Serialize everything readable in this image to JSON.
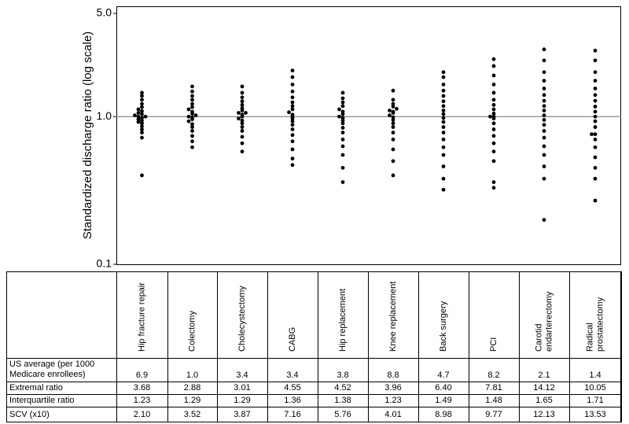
{
  "chart_data": {
    "type": "dot",
    "y_label": "Standardized discharge ratio (log scale)",
    "log_scale": true,
    "color": "#000000",
    "reference_line": 1,
    "ylim": [
      0.1,
      5
    ],
    "yticks": [
      {
        "value": 0.1,
        "label": "0.1"
      },
      {
        "value": 1,
        "label": "1.0"
      },
      {
        "value": 5,
        "label": "5.0"
      }
    ],
    "categories": [
      "Hip fracture repair",
      "Colectomy",
      "Cholecystectomy",
      "CABG",
      "Hip replacement",
      "Knee replacement",
      "Back surgery",
      "PCI",
      "Carotid endarterectomy",
      "Radical prostatectomy"
    ],
    "values": [
      [
        0.4,
        0.72,
        0.78,
        0.82,
        0.86,
        0.9,
        0.92,
        0.94,
        0.96,
        0.98,
        1.0,
        1.0,
        1.02,
        1.04,
        1.06,
        1.09,
        1.12,
        1.16,
        1.22,
        1.3,
        1.38,
        1.45
      ],
      [
        0.62,
        0.68,
        0.74,
        0.8,
        0.85,
        0.89,
        0.93,
        0.96,
        0.99,
        1.0,
        1.02,
        1.05,
        1.08,
        1.12,
        1.16,
        1.22,
        1.3,
        1.38,
        1.48,
        1.6
      ],
      [
        0.58,
        0.66,
        0.73,
        0.8,
        0.85,
        0.9,
        0.94,
        0.97,
        1.0,
        1.03,
        1.06,
        1.06,
        1.1,
        1.14,
        1.2,
        1.27,
        1.35,
        1.45,
        1.6
      ],
      [
        0.47,
        0.52,
        0.6,
        0.68,
        0.75,
        0.82,
        0.88,
        0.93,
        0.97,
        1.0,
        1.03,
        1.07,
        1.12,
        1.18,
        1.25,
        1.35,
        1.48,
        1.65,
        1.85,
        2.05
      ],
      [
        0.36,
        0.45,
        0.55,
        0.63,
        0.7,
        0.78,
        0.84,
        0.9,
        0.94,
        0.98,
        1.0,
        1.04,
        1.08,
        1.12,
        1.18,
        1.25,
        1.33,
        1.45
      ],
      [
        0.4,
        0.5,
        0.6,
        0.7,
        0.78,
        0.85,
        0.9,
        0.95,
        0.99,
        1.02,
        1.06,
        1.08,
        1.1,
        1.13,
        1.17,
        1.22,
        1.3,
        1.5
      ],
      [
        0.32,
        0.38,
        0.46,
        0.55,
        0.62,
        0.7,
        0.78,
        0.85,
        0.92,
        0.98,
        1.04,
        1.1,
        1.18,
        1.27,
        1.38,
        1.5,
        1.65,
        1.85,
        2.0
      ],
      [
        0.33,
        0.36,
        0.5,
        0.58,
        0.66,
        0.74,
        0.82,
        0.9,
        0.97,
        1.0,
        1.0,
        1.05,
        1.12,
        1.2,
        1.3,
        1.45,
        1.65,
        1.9,
        2.2,
        2.45
      ],
      [
        0.2,
        0.38,
        0.46,
        0.55,
        0.63,
        0.72,
        0.8,
        0.88,
        0.95,
        1.02,
        1.1,
        1.18,
        1.28,
        1.4,
        1.55,
        1.75,
        2.0,
        2.4,
        2.85
      ],
      [
        0.27,
        0.38,
        0.45,
        0.53,
        0.62,
        0.7,
        0.76,
        0.76,
        0.85,
        0.93,
        1.0,
        1.08,
        1.17,
        1.28,
        1.4,
        1.55,
        1.75,
        2.0,
        2.4,
        2.8
      ]
    ]
  },
  "table": {
    "columns": [
      [
        "Hip fracture repair"
      ],
      [
        "Colectomy"
      ],
      [
        "Cholecystectomy"
      ],
      [
        "CABG"
      ],
      [
        "Hip replacement"
      ],
      [
        "Knee replacement"
      ],
      [
        "Back surgery"
      ],
      [
        "PCI"
      ],
      [
        "Carotid",
        "endarterectomy"
      ],
      [
        "Radical",
        "prostatectomy"
      ]
    ],
    "rows": [
      {
        "label": [
          "US average (per 1000",
          "Medicare enrollees)"
        ],
        "cells": [
          "6.9",
          "1.0",
          "3.4",
          "3.4",
          "3.8",
          "8.8",
          "4.7",
          "8.2",
          "2.1",
          "1.4"
        ]
      },
      {
        "label": [
          "Extremal ratio"
        ],
        "cells": [
          "3.68",
          "2.88",
          "3.01",
          "4.55",
          "4.52",
          "3.96",
          "6.40",
          "7.81",
          "14.12",
          "10.05"
        ]
      },
      {
        "label": [
          "Interquartile ratio"
        ],
        "cells": [
          "1.23",
          "1.29",
          "1.29",
          "1.36",
          "1.38",
          "1.23",
          "1.49",
          "1.48",
          "1.65",
          "1.71"
        ]
      },
      {
        "label": [
          "SCV (x10)"
        ],
        "cells": [
          "2.10",
          "3.52",
          "3.87",
          "7.16",
          "5.76",
          "4.01",
          "8.98",
          "9.77",
          "12.13",
          "13.53"
        ]
      }
    ]
  }
}
